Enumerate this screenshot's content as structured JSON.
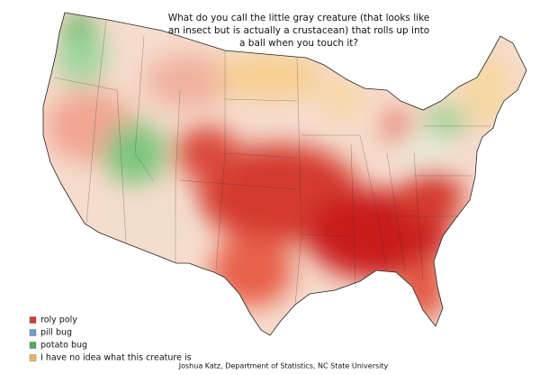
{
  "title_lines": [
    "What do you call the little gray creature (that looks like",
    "an insect but is actually a crustacean) that rolls up into",
    "a ball when you touch it?"
  ],
  "legend": [
    {
      "label": "roly poly",
      "color": "#d43a2f"
    },
    {
      "label": "pill bug",
      "color": "#6a9fd0"
    },
    {
      "label": "potato bug",
      "color": "#4fae50"
    },
    {
      "label": "I have no idea what this creature is",
      "color": "#efb55a"
    }
  ],
  "credit": "Joshua Katz, Department of Statistics, NC State University"
}
